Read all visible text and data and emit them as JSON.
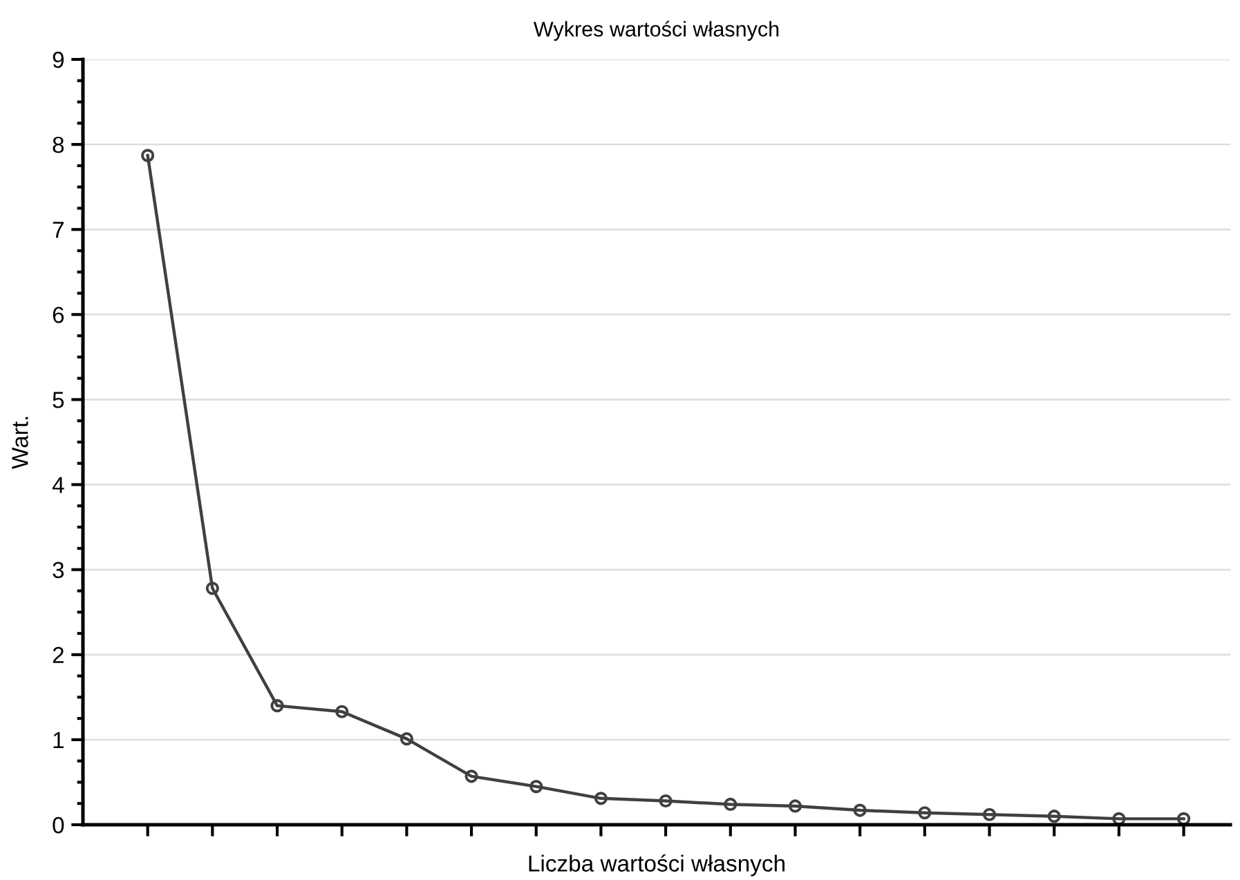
{
  "chart_data": {
    "type": "line",
    "title": "Wykres wartości własnych",
    "xlabel": "Liczba wartości własnych",
    "ylabel": "Wart.",
    "categories": [
      null,
      null,
      null,
      null,
      null,
      null,
      null,
      null,
      null,
      null,
      null,
      null,
      null,
      null,
      null,
      null,
      null
    ],
    "series": [
      {
        "color": "#404040",
        "values": [
          7.87,
          2.78,
          1.4,
          1.33,
          1.01,
          0.57,
          0.45,
          0.31,
          0.28,
          0.24,
          0.22,
          0.17,
          0.14,
          0.12,
          0.1,
          0.07,
          0.07
        ]
      }
    ],
    "ylim": [
      0,
      9
    ],
    "yticks": [
      0,
      {
        "value": 0.25,
        "label": null
      },
      {
        "value": 0.5,
        "label": null
      },
      {
        "value": 0.75,
        "label": null
      },
      1,
      {
        "value": 1.25,
        "label": null
      },
      {
        "value": 1.5,
        "label": null
      },
      {
        "value": 1.75,
        "label": null
      },
      2,
      {
        "value": 2.25,
        "label": null
      },
      {
        "value": 2.5,
        "label": null
      },
      {
        "value": 2.75,
        "label": null
      },
      3,
      {
        "value": 3.25,
        "label": null
      },
      {
        "value": 3.5,
        "label": null
      },
      {
        "value": 3.75,
        "label": null
      },
      4,
      {
        "value": 4.25,
        "label": null
      },
      {
        "value": 4.5,
        "label": null
      },
      {
        "value": 4.75,
        "label": null
      },
      5,
      {
        "value": 5.25,
        "label": null
      },
      {
        "value": 5.5,
        "label": null
      },
      {
        "value": 5.75,
        "label": null
      },
      6,
      {
        "value": 6.25,
        "label": null
      },
      {
        "value": 6.5,
        "label": null
      },
      {
        "value": 6.75,
        "label": null
      },
      7,
      {
        "value": 7.25,
        "label": null
      },
      {
        "value": 7.5,
        "label": null
      },
      {
        "value": 7.75,
        "label": null
      },
      8,
      {
        "value": 8.25,
        "label": null
      },
      {
        "value": 8.5,
        "label": null
      },
      {
        "value": 8.75,
        "label": null
      },
      9
    ],
    "grid": "y",
    "marker": "circle",
    "line_style": "solid",
    "legend": false
  }
}
